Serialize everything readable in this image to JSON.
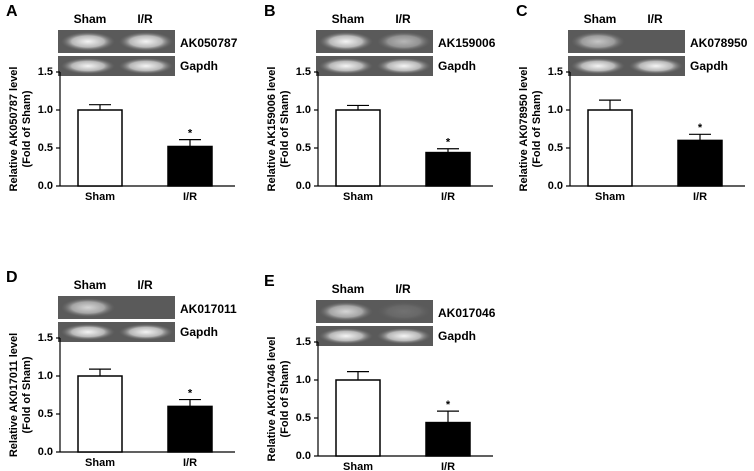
{
  "chart_data": [
    {
      "type": "bar",
      "panel_label": "A",
      "gel_labels": [
        "Sham",
        "I/R"
      ],
      "gene": "AK050787",
      "control_gene": "Gapdh",
      "ylabel": "Relative AK050787 level",
      "ylabel2": "(Fold of Sham)",
      "categories": [
        "Sham",
        "I/R"
      ],
      "values": [
        1.0,
        0.52
      ],
      "errors": [
        0.07,
        0.09
      ],
      "colors": [
        "#ffffff",
        "#000000"
      ],
      "annotation": "*",
      "ylim": [
        0,
        1.5
      ],
      "yticks": [
        {
          "value": 0,
          "label": "0.0"
        },
        {
          "value": 0.5,
          "label": "0.5"
        },
        {
          "value": 1,
          "label": "1.0"
        },
        {
          "value": 1.5,
          "label": "1.5"
        }
      ]
    },
    {
      "type": "bar",
      "panel_label": "B",
      "gel_labels": [
        "Sham",
        "I/R"
      ],
      "gene": "AK159006",
      "control_gene": "Gapdh",
      "ylabel": "Relative AK159006 level",
      "ylabel2": "(Fold of Sham)",
      "categories": [
        "Sham",
        "I/R"
      ],
      "values": [
        1.0,
        0.44
      ],
      "errors": [
        0.06,
        0.05
      ],
      "colors": [
        "#ffffff",
        "#000000"
      ],
      "annotation": "*",
      "ylim": [
        0,
        1.5
      ],
      "yticks": [
        {
          "value": 0,
          "label": "0.0"
        },
        {
          "value": 0.5,
          "label": "0.5"
        },
        {
          "value": 1,
          "label": "1.0"
        },
        {
          "value": 1.5,
          "label": "1.5"
        }
      ]
    },
    {
      "type": "bar",
      "panel_label": "C",
      "gel_labels": [
        "Sham",
        "I/R"
      ],
      "gene": "AK078950",
      "control_gene": "Gapdh",
      "ylabel": "Relative AK078950 level",
      "ylabel2": "(Fold of Sham)",
      "categories": [
        "Sham",
        "I/R"
      ],
      "values": [
        1.0,
        0.6
      ],
      "errors": [
        0.13,
        0.08
      ],
      "colors": [
        "#ffffff",
        "#000000"
      ],
      "annotation": "*",
      "ylim": [
        0,
        1.5
      ],
      "yticks": [
        {
          "value": 0,
          "label": "0.0"
        },
        {
          "value": 0.5,
          "label": "0.5"
        },
        {
          "value": 1,
          "label": "1.0"
        },
        {
          "value": 1.5,
          "label": "1.5"
        }
      ]
    },
    {
      "type": "bar",
      "panel_label": "D",
      "gel_labels": [
        "Sham",
        "I/R"
      ],
      "gene": "AK017011",
      "control_gene": "Gapdh",
      "ylabel": "Relative AK017011 level",
      "ylabel2": "(Fold of Sham)",
      "categories": [
        "Sham",
        "I/R"
      ],
      "values": [
        1.0,
        0.6
      ],
      "errors": [
        0.09,
        0.09
      ],
      "colors": [
        "#ffffff",
        "#000000"
      ],
      "annotation": "*",
      "ylim": [
        0,
        1.5
      ],
      "yticks": [
        {
          "value": 0,
          "label": "0.0"
        },
        {
          "value": 0.5,
          "label": "0.5"
        },
        {
          "value": 1,
          "label": "1.0"
        },
        {
          "value": 1.5,
          "label": "1.5"
        }
      ]
    },
    {
      "type": "bar",
      "panel_label": "E",
      "gel_labels": [
        "Sham",
        "I/R"
      ],
      "gene": "AK017046",
      "control_gene": "Gapdh",
      "ylabel": "Relative AK017046 level",
      "ylabel2": "(Fold of Sham)",
      "categories": [
        "Sham",
        "I/R"
      ],
      "values": [
        1.0,
        0.44
      ],
      "errors": [
        0.11,
        0.15
      ],
      "colors": [
        "#ffffff",
        "#000000"
      ],
      "annotation": "*",
      "ylim": [
        0,
        1.5
      ],
      "yticks": [
        {
          "value": 0,
          "label": "0.0"
        },
        {
          "value": 0.5,
          "label": "0.5"
        },
        {
          "value": 1,
          "label": "1.0"
        },
        {
          "value": 1.5,
          "label": "1.5"
        }
      ]
    }
  ]
}
